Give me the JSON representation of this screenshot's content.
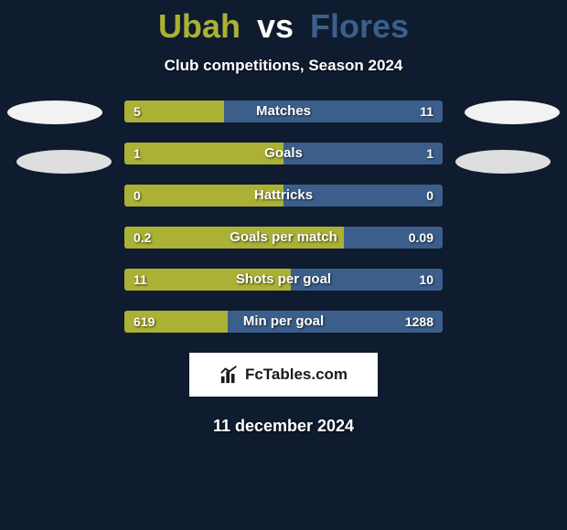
{
  "title": {
    "player1": "Ubah",
    "vs": "vs",
    "player2": "Flores"
  },
  "subtitle": "Club competitions, Season 2024",
  "colors": {
    "left": "#aab134",
    "right": "#3b5f8a",
    "background": "#0f1b2e",
    "text": "#ffffff"
  },
  "stats": [
    {
      "label": "Matches",
      "left_val": "5",
      "right_val": "11",
      "left_pct": 31.3
    },
    {
      "label": "Goals",
      "left_val": "1",
      "right_val": "1",
      "left_pct": 50.0
    },
    {
      "label": "Hattricks",
      "left_val": "0",
      "right_val": "0",
      "left_pct": 50.0
    },
    {
      "label": "Goals per match",
      "left_val": "0.2",
      "right_val": "0.09",
      "left_pct": 69.0
    },
    {
      "label": "Shots per goal",
      "left_val": "11",
      "right_val": "10",
      "left_pct": 52.4
    },
    {
      "label": "Min per goal",
      "left_val": "619",
      "right_val": "1288",
      "left_pct": 32.5
    }
  ],
  "brand": "FcTables.com",
  "date": "11 december 2024"
}
